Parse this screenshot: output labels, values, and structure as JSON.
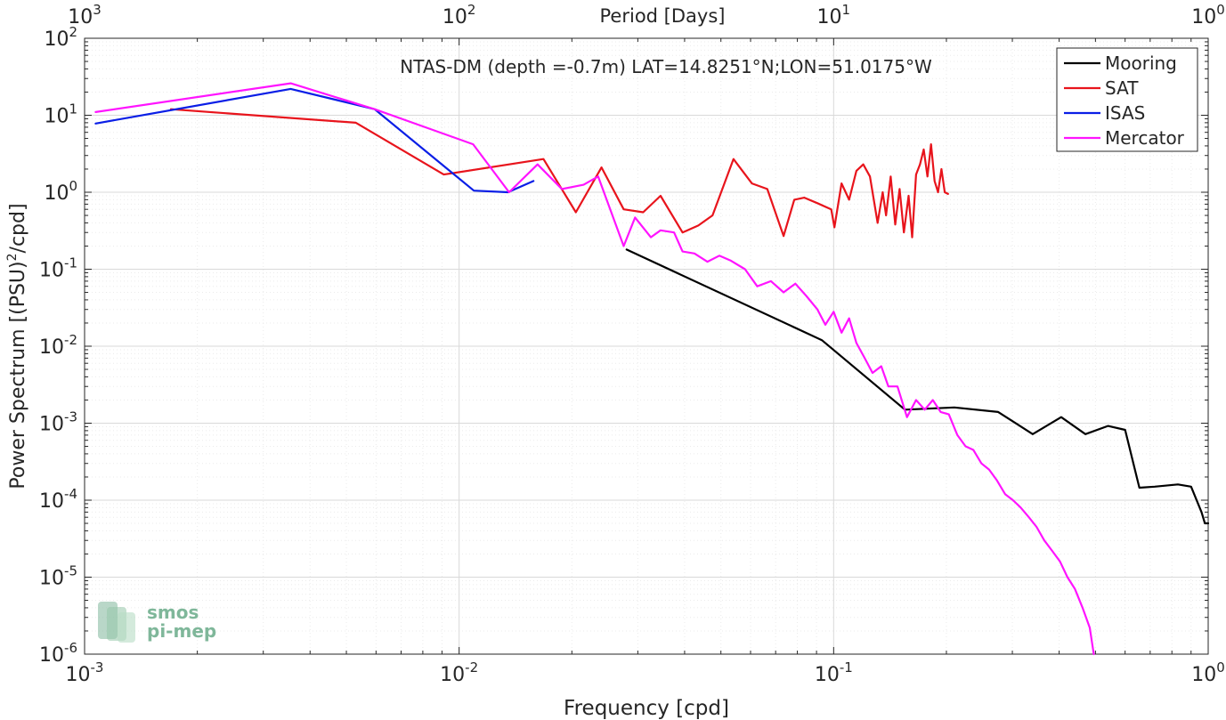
{
  "chart_data": {
    "type": "line",
    "title": "NTAS-DM (depth =-0.7m) LAT=14.8251°N;LON=51.0175°W",
    "xlabel": "Frequency [cpd]",
    "ylabel": "Power Spectrum [(PSU)",
    "ylabel_sup": "2",
    "ylabel_tail": "/cpd]",
    "top_xlabel": "Period [Days]",
    "xscale": "log",
    "yscale": "log",
    "xlim": [
      0.001,
      1
    ],
    "ylim": [
      1e-06,
      100
    ],
    "grid": true,
    "legend_position": "top-right",
    "x_ticks": [
      {
        "value": 0.001,
        "base": "10",
        "exp": "-3"
      },
      {
        "value": 0.01,
        "base": "10",
        "exp": "-2"
      },
      {
        "value": 0.1,
        "base": "10",
        "exp": "-1"
      },
      {
        "value": 1,
        "base": "10",
        "exp": "0"
      }
    ],
    "top_ticks": [
      {
        "value": 0.001,
        "base": "10",
        "exp": "3"
      },
      {
        "value": 0.01,
        "base": "10",
        "exp": "2"
      },
      {
        "value": 0.1,
        "base": "10",
        "exp": "1"
      },
      {
        "value": 1,
        "base": "10",
        "exp": "0"
      }
    ],
    "y_ticks": [
      {
        "value": 100,
        "base": "10",
        "exp": "2"
      },
      {
        "value": 10,
        "base": "10",
        "exp": "1"
      },
      {
        "value": 1,
        "base": "10",
        "exp": "0"
      },
      {
        "value": 0.1,
        "base": "10",
        "exp": "-1"
      },
      {
        "value": 0.01,
        "base": "10",
        "exp": "-2"
      },
      {
        "value": 0.001,
        "base": "10",
        "exp": "-3"
      },
      {
        "value": 0.0001,
        "base": "10",
        "exp": "-4"
      },
      {
        "value": 1e-05,
        "base": "10",
        "exp": "-5"
      },
      {
        "value": 1e-06,
        "base": "10",
        "exp": "-6"
      }
    ],
    "series": [
      {
        "name": "Mooring",
        "color": "#000000",
        "x": [
          0.028,
          0.093,
          0.155,
          0.21,
          0.275,
          0.34,
          0.405,
          0.47,
          0.54,
          0.6,
          0.655,
          0.72,
          0.83,
          0.9,
          0.96,
          0.98,
          1.0
        ],
        "y": [
          0.18,
          0.012,
          0.0015,
          0.0016,
          0.0014,
          0.00072,
          0.0012,
          0.00072,
          0.00092,
          0.00082,
          0.000145,
          0.00015,
          0.00016,
          0.00015,
          7e-05,
          5e-05,
          5e-05
        ]
      },
      {
        "name": "SAT",
        "color": "#e8141c",
        "x": [
          0.0017,
          0.0053,
          0.0091,
          0.0168,
          0.0205,
          0.024,
          0.0275,
          0.031,
          0.0345,
          0.0395,
          0.0435,
          0.0475,
          0.054,
          0.0605,
          0.0665,
          0.0735,
          0.0785,
          0.0835,
          0.0905,
          0.0985,
          0.1005,
          0.105,
          0.11,
          0.115,
          0.12,
          0.125,
          0.131,
          0.1352,
          0.138,
          0.142,
          0.146,
          0.15,
          0.154,
          0.1585,
          0.162,
          0.166,
          0.17,
          0.174,
          0.178,
          0.182,
          0.186,
          0.19,
          0.194,
          0.198,
          0.202
        ],
        "y": [
          12.0,
          8.0,
          1.7,
          2.7,
          0.55,
          2.1,
          0.6,
          0.55,
          0.9,
          0.3,
          0.37,
          0.5,
          2.7,
          1.3,
          1.1,
          0.27,
          0.8,
          0.85,
          0.72,
          0.6,
          0.35,
          1.3,
          0.8,
          1.9,
          2.3,
          1.6,
          0.4,
          1.0,
          0.5,
          1.6,
          0.38,
          1.1,
          0.3,
          0.9,
          0.26,
          1.7,
          2.3,
          3.6,
          1.6,
          4.2,
          1.4,
          1.0,
          2.0,
          1.0,
          0.95
        ]
      },
      {
        "name": "ISAS",
        "color": "#0a1ee6",
        "x": [
          0.00107,
          0.00355,
          0.00595,
          0.01095,
          0.0135,
          0.0158
        ],
        "y": [
          7.8,
          22.0,
          12.0,
          1.05,
          1.0,
          1.4
        ]
      },
      {
        "name": "Mercator",
        "color": "#ff14ff",
        "x": [
          0.00107,
          0.00355,
          0.00595,
          0.0109,
          0.0136,
          0.0162,
          0.0188,
          0.0215,
          0.0235,
          0.0275,
          0.0295,
          0.0325,
          0.0345,
          0.0375,
          0.0395,
          0.0425,
          0.046,
          0.0495,
          0.053,
          0.058,
          0.0625,
          0.068,
          0.0735,
          0.079,
          0.0845,
          0.0905,
          0.095,
          0.1,
          0.105,
          0.11,
          0.115,
          0.121,
          0.127,
          0.134,
          0.14,
          0.148,
          0.157,
          0.166,
          0.175,
          0.184,
          0.193,
          0.203,
          0.214,
          0.225,
          0.236,
          0.248,
          0.26,
          0.273,
          0.287,
          0.301,
          0.316,
          0.332,
          0.348,
          0.365,
          0.383,
          0.402,
          0.421,
          0.441,
          0.462,
          0.483,
          0.495
        ],
        "y": [
          11.0,
          26.0,
          12.0,
          4.2,
          1.0,
          2.3,
          1.1,
          1.25,
          1.6,
          0.2,
          0.47,
          0.26,
          0.32,
          0.3,
          0.17,
          0.16,
          0.125,
          0.15,
          0.13,
          0.1,
          0.06,
          0.07,
          0.05,
          0.065,
          0.045,
          0.03,
          0.019,
          0.028,
          0.015,
          0.023,
          0.011,
          0.007,
          0.0045,
          0.0055,
          0.003,
          0.003,
          0.0012,
          0.002,
          0.0015,
          0.002,
          0.0014,
          0.0013,
          0.0007,
          0.0005,
          0.00045,
          0.0003,
          0.00025,
          0.00018,
          0.00012,
          0.0001,
          8e-05,
          6e-05,
          4.5e-05,
          3e-05,
          2.2e-05,
          1.6e-05,
          1e-05,
          7e-06,
          4e-06,
          2.2e-06,
          1e-06
        ]
      }
    ]
  },
  "watermark": {
    "line1": "smos",
    "line2": "pi-mep"
  }
}
